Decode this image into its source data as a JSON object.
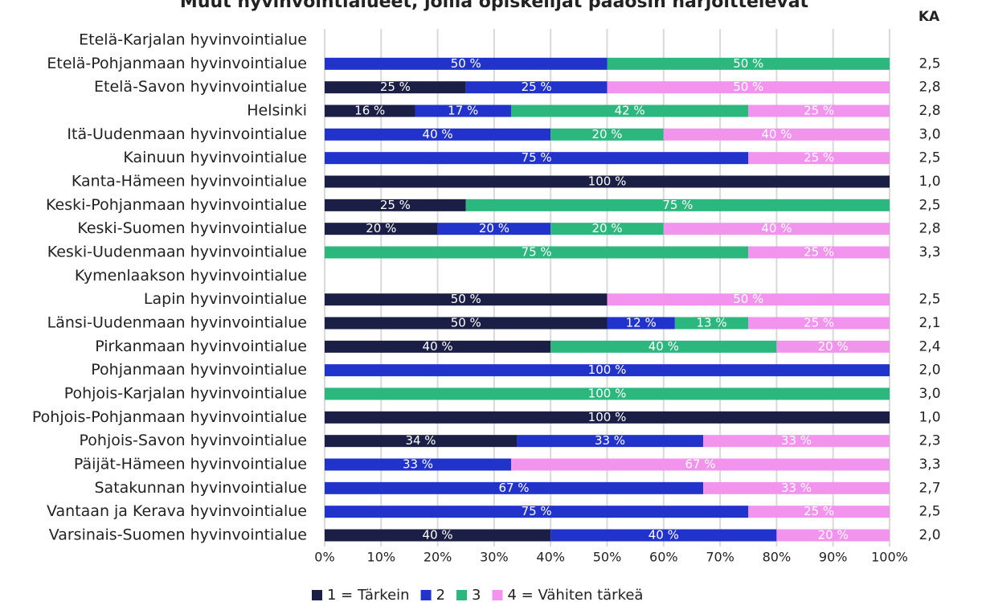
{
  "chart_data": {
    "type": "stacked_barh",
    "title": "Muut hyvinvointialueet, joilla opiskelijat pääosin harjoittelevat",
    "categories": [
      "Etelä-Karjalan hyvinvointialue",
      "Etelä-Pohjanmaan hyvinvointialue",
      "Etelä-Savon hyvinvointialue",
      "Helsinki",
      "Itä-Uudenmaan hyvinvointialue",
      "Kainuun hyvinvointialue",
      "Kanta-Hämeen hyvinvointialue",
      "Keski-Pohjanmaan hyvinvointialue",
      "Keski-Suomen hyvinvointialue",
      "Keski-Uudenmaan hyvinvointialue",
      "Kymenlaakson hyvinvointialue",
      "Lapin hyvinvointialue",
      "Länsi-Uudenmaan hyvinvointialue",
      "Pirkanmaan hyvinvointialue",
      "Pohjanmaan hyvinvointialue",
      "Pohjois-Karjalan hyvinvointialue",
      "Pohjois-Pohjanmaan hyvinvointialue",
      "Pohjois-Savon hyvinvointialue",
      "Päijät-Hämeen hyvinvointialue",
      "Satakunnan hyvinvointialue",
      "Vantaan ja Kerava hyvinvointialue",
      "Varsinais-Suomen hyvinvointialue"
    ],
    "series": [
      {
        "name": "1 = Tärkein",
        "color": "#1c1f45",
        "values": [
          null,
          null,
          25,
          16,
          null,
          null,
          100,
          25,
          20,
          null,
          null,
          50,
          50,
          40,
          null,
          null,
          100,
          34,
          null,
          null,
          null,
          40
        ],
        "value_labels": [
          null,
          null,
          "25 %",
          "16 %",
          null,
          null,
          "100 %",
          "25 %",
          "20 %",
          null,
          null,
          "50 %",
          "50 %",
          "40 %",
          null,
          null,
          "100 %",
          "34 %",
          null,
          null,
          null,
          "40 %"
        ]
      },
      {
        "name": "2",
        "color": "#2233cc",
        "values": [
          null,
          50,
          25,
          17,
          40,
          75,
          null,
          null,
          20,
          null,
          null,
          null,
          12,
          null,
          100,
          null,
          null,
          33,
          33,
          67,
          75,
          40
        ],
        "value_labels": [
          null,
          "50 %",
          "25 %",
          "17 %",
          "40 %",
          "75 %",
          null,
          null,
          "20 %",
          null,
          null,
          null,
          "12 %",
          null,
          "100 %",
          null,
          null,
          "33 %",
          "33 %",
          "67 %",
          "75 %",
          "40 %"
        ]
      },
      {
        "name": "3",
        "color": "#2bb77d",
        "values": [
          null,
          50,
          null,
          42,
          20,
          null,
          null,
          75,
          20,
          75,
          null,
          null,
          13,
          40,
          null,
          100,
          null,
          null,
          null,
          null,
          null,
          null
        ],
        "value_labels": [
          null,
          "50 %",
          null,
          "42 %",
          "20 %",
          null,
          null,
          "75 %",
          "20 %",
          "75 %",
          null,
          null,
          "13 %",
          "40 %",
          null,
          "100 %",
          null,
          null,
          null,
          null,
          null,
          null
        ]
      },
      {
        "name": "4 = Vähiten tärkeä",
        "color": "#f294ee",
        "values": [
          null,
          null,
          50,
          25,
          40,
          25,
          null,
          null,
          40,
          25,
          null,
          50,
          25,
          20,
          null,
          null,
          null,
          33,
          67,
          33,
          25,
          20
        ],
        "value_labels": [
          null,
          null,
          "50 %",
          "25 %",
          "40 %",
          "25 %",
          null,
          null,
          "40 %",
          "25 %",
          null,
          "50 %",
          "25 %",
          "20 %",
          null,
          null,
          null,
          "33 %",
          "67 %",
          "33 %",
          "25 %",
          "20 %"
        ]
      }
    ],
    "ka": {
      "label": "KA",
      "values": [
        null,
        2.5,
        2.8,
        2.8,
        3.0,
        2.5,
        1.0,
        2.5,
        2.8,
        3.3,
        null,
        2.5,
        2.1,
        2.4,
        2.0,
        3.0,
        1.0,
        2.3,
        3.3,
        2.7,
        2.5,
        2.0
      ],
      "value_labels": [
        null,
        "2,5",
        "2,8",
        "2,8",
        "3,0",
        "2,5",
        "1,0",
        "2,5",
        "2,8",
        "3,3",
        null,
        "2,5",
        "2,1",
        "2,4",
        "2,0",
        "3,0",
        "1,0",
        "2,3",
        "3,3",
        "2,7",
        "2,5",
        "2,0"
      ]
    },
    "xlim": [
      0,
      100
    ],
    "xticks": [
      {
        "value": 0,
        "label": "0%"
      },
      {
        "value": 10,
        "label": "10%"
      },
      {
        "value": 20,
        "label": "20%"
      },
      {
        "value": 30,
        "label": "30%"
      },
      {
        "value": 40,
        "label": "40%"
      },
      {
        "value": 50,
        "label": "50%"
      },
      {
        "value": 60,
        "label": "60%"
      },
      {
        "value": 70,
        "label": "70%"
      },
      {
        "value": 80,
        "label": "80%"
      },
      {
        "value": 90,
        "label": "90%"
      },
      {
        "value": 100,
        "label": "100%"
      }
    ],
    "grid": true,
    "legend": "bottom"
  }
}
